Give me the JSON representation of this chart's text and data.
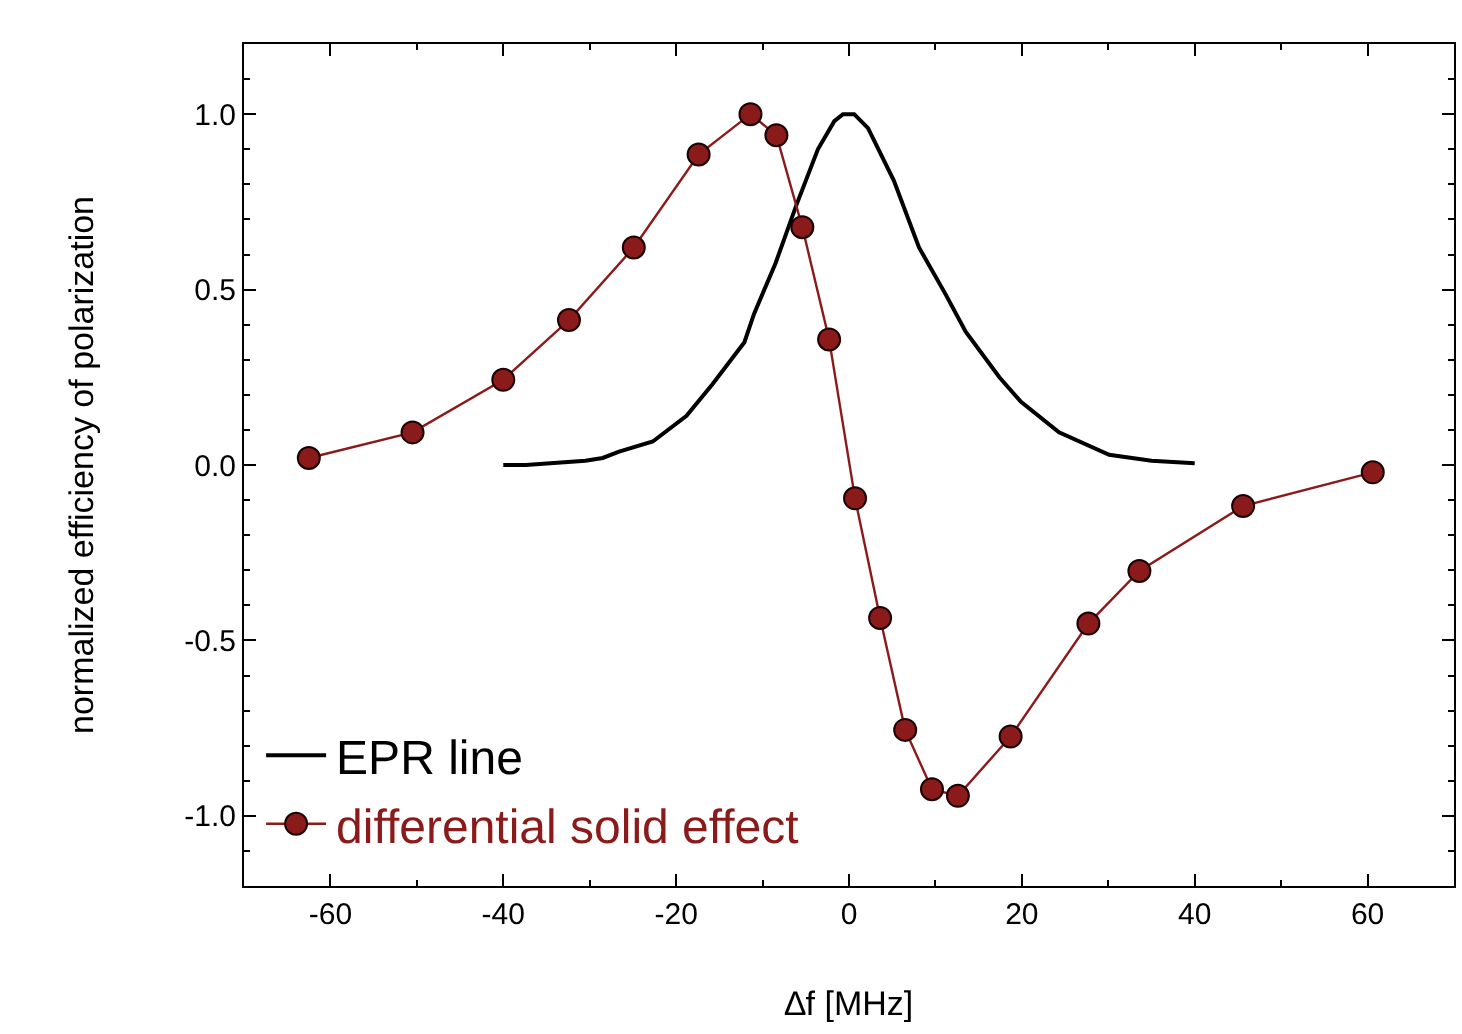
{
  "chart_data": {
    "type": "line",
    "xlabel": "∆f [MHz]",
    "ylabel": "normalized efficiency of polarization",
    "xlim": [
      -70,
      70
    ],
    "xticks": [
      -60,
      -40,
      -20,
      0,
      20,
      40,
      60
    ],
    "ylim": [
      -1.2,
      1.2
    ],
    "yticks": [
      {
        "value": -1,
        "label": "-1.0"
      },
      -0.5,
      {
        "value": 0,
        "label": "0.0"
      },
      0.5,
      {
        "value": 1,
        "label": "1.0"
      }
    ],
    "grid": false,
    "legend": "bottom left",
    "series": [
      {
        "name": "EPR line",
        "color": "#000000",
        "marker": "none",
        "x": [
          -40,
          -37.4,
          -30.5,
          -28.5,
          -26.6,
          -22.7,
          -18.8,
          -15.8,
          -12.1,
          -11,
          -8.5,
          -6.1,
          -3.6,
          -1.7,
          -0.7,
          0.6,
          2.2,
          5.2,
          8.1,
          11.1,
          13.5,
          17.4,
          19.9,
          24.3,
          30.1,
          35,
          40
        ],
        "values": [
          0,
          0,
          0.012,
          0.02,
          0.038,
          0.067,
          0.14,
          0.23,
          0.35,
          0.43,
          0.575,
          0.74,
          0.9,
          0.98,
          1.0,
          1.0,
          0.96,
          0.81,
          0.62,
          0.49,
          0.38,
          0.25,
          0.18,
          0.093,
          0.029,
          0.012,
          0.005
        ]
      },
      {
        "name": "differential solid effect",
        "color": "#8b1a1a",
        "marker": "circle",
        "x": [
          -62.5,
          -50.5,
          -40,
          -32.4,
          -24.9,
          -17.4,
          -11.4,
          -8.4,
          -5.4,
          -2.3,
          0.7,
          3.6,
          6.5,
          9.6,
          12.6,
          18.7,
          27.7,
          33.6,
          45.6,
          60.6
        ],
        "values": [
          0.02,
          0.093,
          0.243,
          0.413,
          0.62,
          0.885,
          1.0,
          0.94,
          0.678,
          0.358,
          -0.095,
          -0.436,
          -0.755,
          -0.924,
          -0.943,
          -0.774,
          -0.452,
          -0.302,
          -0.117,
          -0.021
        ]
      }
    ]
  }
}
